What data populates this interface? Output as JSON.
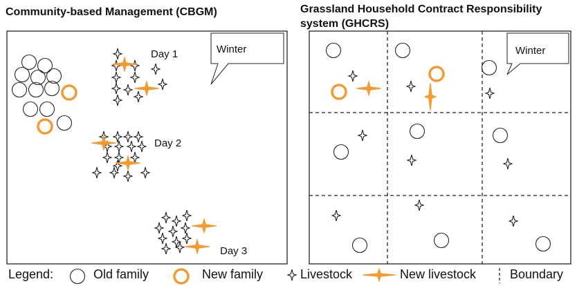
{
  "left_panel": {
    "title": "Community-based Management (CBGM)",
    "callout": "Winter",
    "day_labels": [
      "Day 1",
      "Day 2",
      "Day 3"
    ]
  },
  "right_panel": {
    "title_lines": [
      "Grassland Household Contract Responsibility",
      "system (GHCRS)"
    ],
    "callout": "Winter"
  },
  "legend": {
    "title": "Legend:",
    "items": [
      "Old family",
      "New family",
      "Livestock",
      "New livestock",
      "Boundary"
    ]
  }
}
